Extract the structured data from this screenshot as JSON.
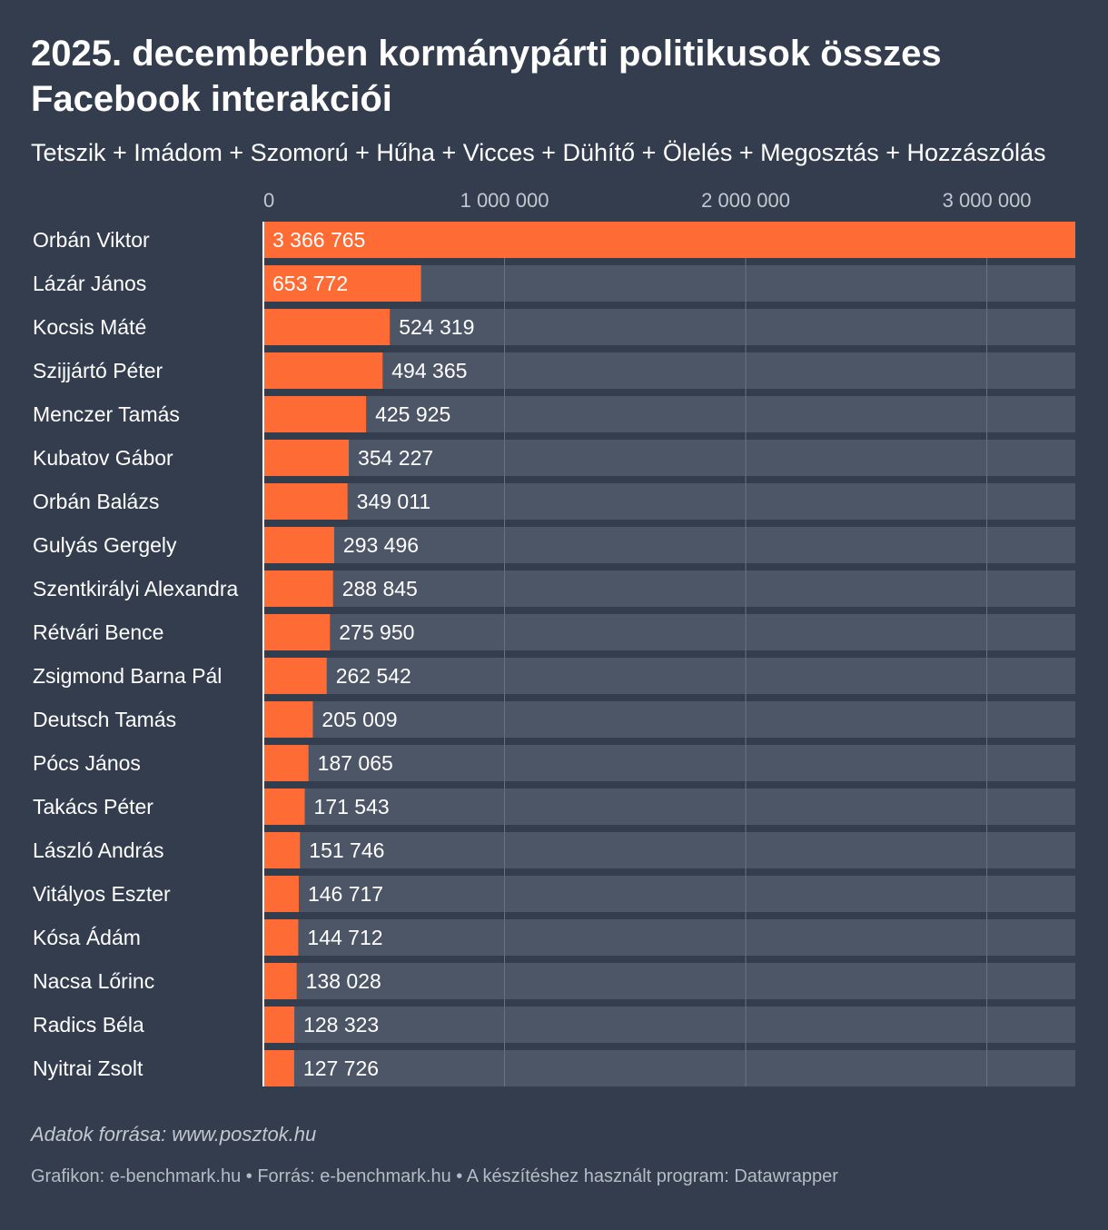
{
  "title": "2025. decemberben kormánypárti politikusok összes Facebook interakciói",
  "subtitle": "Tetszik + Imádom + Szomorú + Hűha + Vicces + Dühítő + Ölelés + Megosztás + Hozzászólás",
  "footer": {
    "source": "Adatok forrása: www.posztok.hu",
    "credit": "Grafikon: e-benchmark.hu • Forrás: e-benchmark.hu • A készítéshez használt program: Datawrapper"
  },
  "colors": {
    "background": "#333d4d",
    "bar": "#ff6b35",
    "track": "#4c5666",
    "grid": "#6b7483",
    "tick": "#c3c8d0",
    "label": "#ffffff"
  },
  "chart_data": {
    "type": "bar",
    "orientation": "horizontal",
    "xlim": [
      0,
      3366765
    ],
    "ticks": [
      {
        "value": 0,
        "label": "0"
      },
      {
        "value": 1000000,
        "label": "1 000 000"
      },
      {
        "value": 2000000,
        "label": "2 000 000"
      },
      {
        "value": 3000000,
        "label": "3 000 000"
      }
    ],
    "categories": [
      "Orbán Viktor",
      "Lázár János",
      "Kocsis Máté",
      "Szijjártó Péter",
      "Menczer Tamás",
      "Kubatov Gábor",
      "Orbán Balázs",
      "Gulyás Gergely",
      "Szentkirályi Alexandra",
      "Rétvári Bence",
      "Zsigmond Barna Pál",
      "Deutsch Tamás",
      "Pócs János",
      "Takács Péter",
      "László András",
      "Vitályos Eszter",
      "Kósa Ádám",
      "Nacsa Lőrinc",
      "Radics Béla",
      "Nyitrai Zsolt"
    ],
    "values": [
      3366765,
      653772,
      524319,
      494365,
      425925,
      354227,
      349011,
      293496,
      288845,
      275950,
      262542,
      205009,
      187065,
      171543,
      151746,
      146717,
      144712,
      138028,
      128323,
      127726
    ],
    "value_labels": [
      "3 366 765",
      "653 772",
      "524 319",
      "494 365",
      "425 925",
      "354 227",
      "349 011",
      "293 496",
      "288 845",
      "275 950",
      "262 542",
      "205 009",
      "187 065",
      "171 543",
      "151 746",
      "146 717",
      "144 712",
      "138 028",
      "128 323",
      "127 726"
    ]
  }
}
